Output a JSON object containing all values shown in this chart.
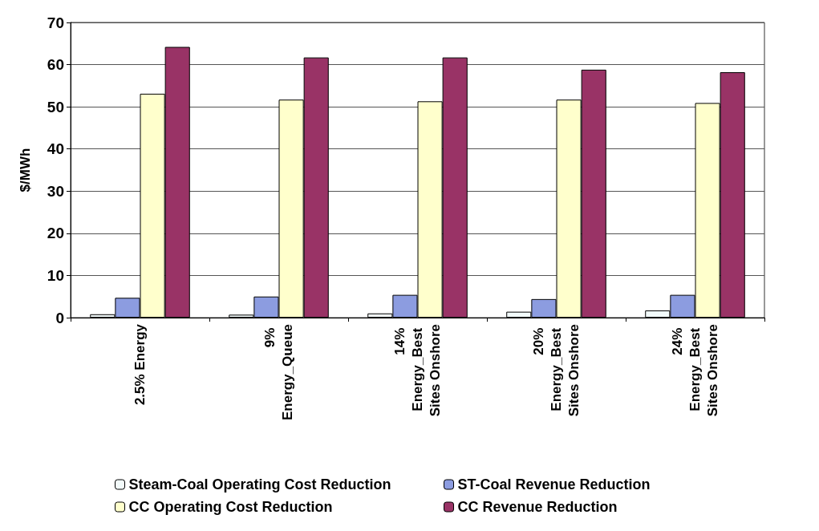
{
  "chart_data": {
    "type": "bar",
    "ylabel": "$/MWh",
    "categories": [
      "2.5% Energy",
      "9% Energy_Queue",
      "14% Energy_Best Sites Onshore",
      "20% Energy_Best Sites Onshore",
      "24% Energy_Best Sites Onshore"
    ],
    "series": [
      {
        "name": "Steam-Coal Operating Cost Reduction",
        "color": "#f2fafa",
        "values": [
          0.8,
          0.7,
          1.0,
          1.4,
          1.7
        ]
      },
      {
        "name": "ST-Coal Revenue Reduction",
        "color": "#8c9ce0",
        "values": [
          4.7,
          5.0,
          5.4,
          4.4,
          5.4
        ]
      },
      {
        "name": "CC Operating Cost Reduction",
        "color": "#ffffcc",
        "values": [
          53.1,
          51.7,
          51.3,
          51.7,
          50.9
        ]
      },
      {
        "name": "CC Revenue Reduction",
        "color": "#993366",
        "values": [
          64.2,
          61.7,
          61.7,
          58.8,
          58.2
        ]
      }
    ],
    "ylim": [
      0,
      70
    ],
    "yticks": [
      0,
      10,
      20,
      30,
      40,
      50,
      60,
      70
    ],
    "grid": "y",
    "legend": "bottom"
  }
}
